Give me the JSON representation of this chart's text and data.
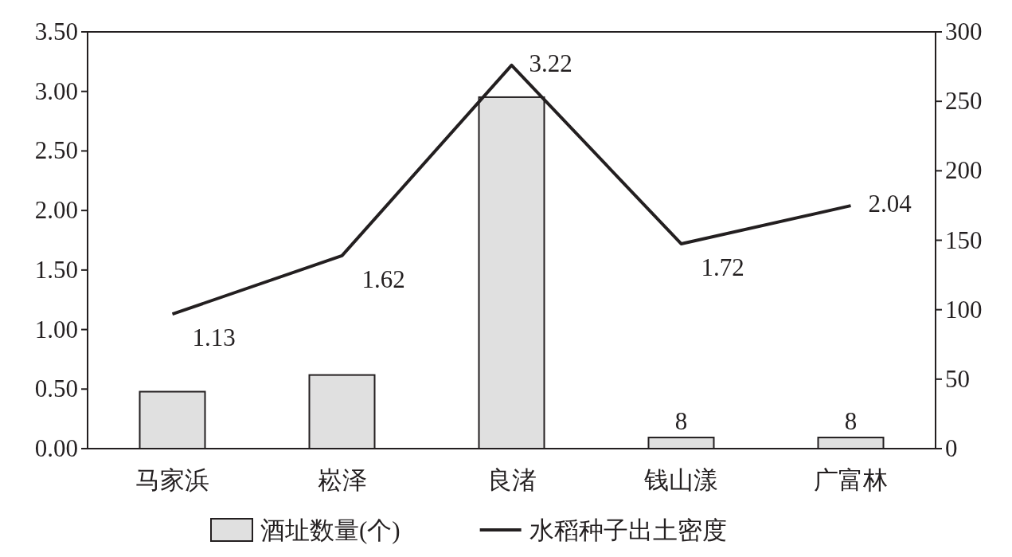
{
  "chart_data": {
    "type": "bar",
    "categories": [
      "马家浜",
      "崧泽",
      "良渚",
      "钱山漾",
      "广富林"
    ],
    "series": [
      {
        "name": "酒址数量(个)",
        "axis": "y2",
        "color": "#e0e0e0",
        "values": [
          41,
          53,
          253,
          8,
          8
        ],
        "value_labels": [
          null,
          null,
          null,
          "8",
          "8"
        ]
      },
      {
        "name": "水稻种子出土密度",
        "type": "line",
        "axis": "y",
        "color": "#231f20",
        "values": [
          1.13,
          1.62,
          3.22,
          1.72,
          2.04
        ],
        "value_labels": [
          "1.13",
          "1.62",
          "3.22",
          "1.72",
          "2.04"
        ]
      }
    ],
    "ylim": [
      0,
      3.5
    ],
    "yticks": [
      {
        "value": 0,
        "label": "0.00"
      },
      {
        "value": 0.5,
        "label": "0.50"
      },
      {
        "value": 1,
        "label": "1.00"
      },
      {
        "value": 1.5,
        "label": "1.50"
      },
      {
        "value": 2,
        "label": "2.00"
      },
      {
        "value": 2.5,
        "label": "2.50"
      },
      {
        "value": 3,
        "label": "3.00"
      },
      {
        "value": 3.5,
        "label": "3.50"
      }
    ],
    "y2lim": [
      0,
      300
    ],
    "y2ticks": [
      0,
      50,
      100,
      150,
      200,
      250,
      300
    ],
    "legend": "bottom"
  }
}
